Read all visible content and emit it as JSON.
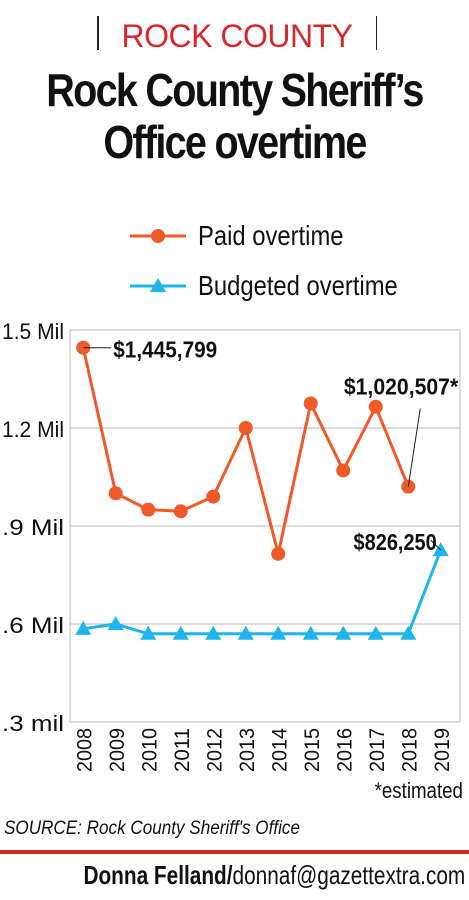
{
  "kicker": "ROCK COUNTY",
  "title": "Rock County Sheriff’s Office overtime",
  "note": "*estimated",
  "source": "SOURCE: Rock County Sheriff's Office",
  "credit": {
    "name": "Donna Felland/",
    "email": "donnaf@gazettextra.com"
  },
  "colors": {
    "paid": "#ef5a28",
    "budgeted": "#1fb5ea",
    "accent": "#d9262b"
  },
  "chart_data": {
    "type": "line",
    "categories": [
      "2008",
      "2009",
      "2010",
      "2011",
      "2012",
      "2013",
      "2014",
      "2015",
      "2016",
      "2017",
      "2018",
      "2019"
    ],
    "series": [
      {
        "name": "Paid overtime",
        "marker": "circle",
        "values": [
          1445799,
          1000000,
          950000,
          945000,
          990000,
          1200000,
          815000,
          1275000,
          1070000,
          1265000,
          1020507,
          null
        ]
      },
      {
        "name": "Budgeted overtime",
        "marker": "triangle",
        "values": [
          585000,
          600000,
          570000,
          570000,
          570000,
          570000,
          570000,
          570000,
          570000,
          570000,
          570000,
          826250
        ]
      }
    ],
    "ylim": [
      300000,
      1500000
    ],
    "yticks": [
      {
        "value": 1500000,
        "label": "1.5 Mil"
      },
      {
        "value": 1200000,
        "label": "1.2 Mil"
      },
      {
        "value": 900000,
        "label": ".9 Mil"
      },
      {
        "value": 600000,
        "label": ".6 Mil"
      },
      {
        "value": 300000,
        "label": ".3 mil"
      }
    ],
    "annotations": [
      {
        "series": 0,
        "index": 0,
        "text": "$1,445,799"
      },
      {
        "series": 0,
        "index": 10,
        "text": "$1,020,507*"
      },
      {
        "series": 1,
        "index": 11,
        "text": "$826,250"
      }
    ]
  }
}
